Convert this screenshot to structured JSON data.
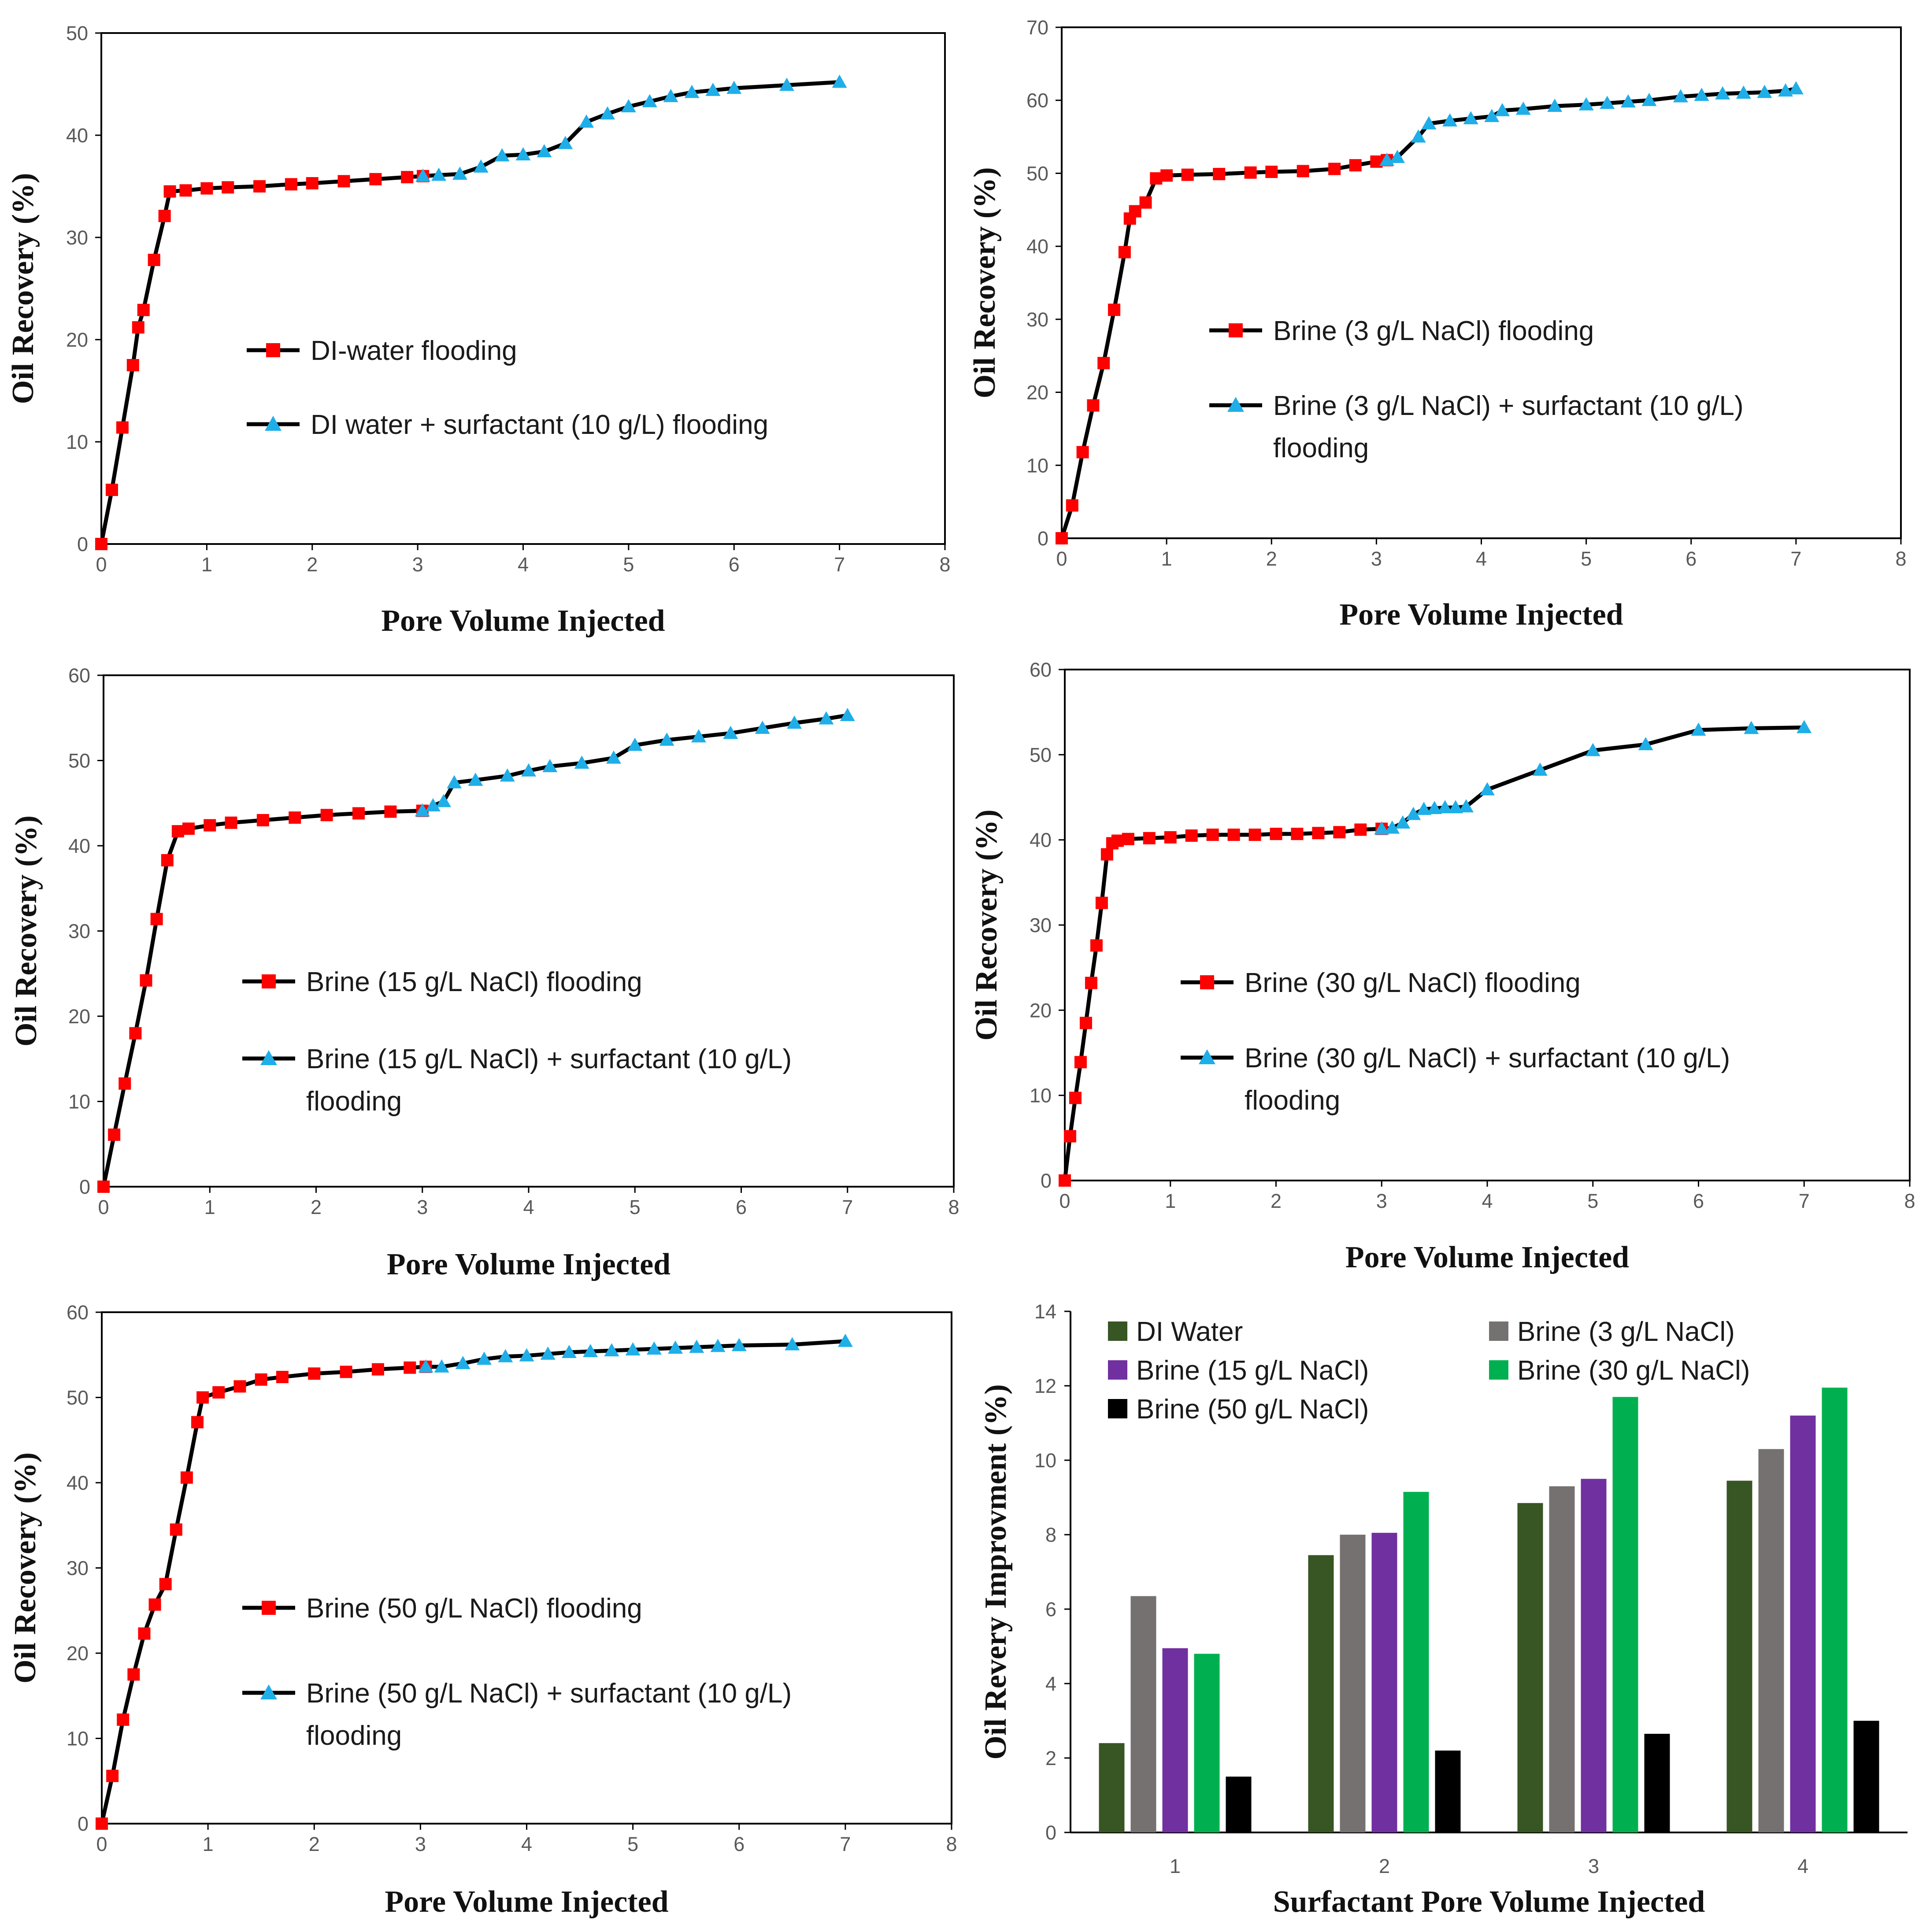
{
  "chart_data": [
    {
      "type": "line",
      "xlabel": "Pore Volume Injected",
      "ylabel": "Oil Recovery (%)",
      "xlim": [
        0,
        8
      ],
      "ylim": [
        0,
        50
      ],
      "xticks": [
        "0",
        "1",
        "2",
        "3",
        "4",
        "5",
        "6",
        "7",
        "8"
      ],
      "yticks": [
        "0",
        "10",
        "20",
        "30",
        "40",
        "50"
      ],
      "legend": "center",
      "series": [
        {
          "name": "DI-water flooding",
          "marker": "square",
          "color": "#ff0000",
          "x": [
            0,
            0.1,
            0.2,
            0.3,
            0.35,
            0.4,
            0.5,
            0.6,
            0.65,
            0.8,
            1,
            1.2,
            1.5,
            1.8,
            2,
            2.3,
            2.6,
            2.9,
            3.05
          ],
          "y": [
            0,
            5.3,
            11.4,
            17.5,
            21.2,
            22.9,
            27.8,
            32.1,
            34.5,
            34.6,
            34.8,
            34.9,
            35,
            35.2,
            35.3,
            35.5,
            35.7,
            35.9,
            36
          ]
        },
        {
          "name": "DI water + surfactant (10 g/L) flooding",
          "marker": "triangle",
          "color": "#1faee8",
          "x": [
            3.05,
            3.2,
            3.4,
            3.6,
            3.8,
            4,
            4.2,
            4.4,
            4.6,
            4.8,
            5,
            5.2,
            5.4,
            5.6,
            5.8,
            6,
            6.5,
            7
          ],
          "y": [
            36,
            36.1,
            36.2,
            36.9,
            38,
            38.1,
            38.4,
            39.2,
            41.3,
            42.1,
            42.8,
            43.3,
            43.8,
            44.2,
            44.4,
            44.6,
            44.9,
            45.2
          ]
        }
      ]
    },
    {
      "type": "line",
      "xlabel": "Pore Volume Injected",
      "ylabel": "Oil Recovery (%)",
      "xlim": [
        0,
        8
      ],
      "ylim": [
        0,
        70
      ],
      "xticks": [
        "0",
        "1",
        "2",
        "3",
        "4",
        "5",
        "6",
        "7",
        "8"
      ],
      "yticks": [
        "0",
        "10",
        "20",
        "30",
        "40",
        "50",
        "60",
        "70"
      ],
      "legend": "center",
      "series": [
        {
          "name": "Brine (3 g/L NaCl) flooding",
          "marker": "square",
          "color": "#ff0000",
          "x": [
            0,
            0.1,
            0.2,
            0.3,
            0.4,
            0.5,
            0.6,
            0.65,
            0.7,
            0.8,
            0.9,
            1,
            1.2,
            1.5,
            1.8,
            2,
            2.3,
            2.6,
            2.8,
            3,
            3.1
          ],
          "y": [
            0,
            4.5,
            11.8,
            18.2,
            24,
            31.3,
            39.2,
            43.8,
            44.8,
            46,
            49.3,
            49.7,
            49.8,
            49.9,
            50.1,
            50.2,
            50.3,
            50.6,
            51.1,
            51.6,
            51.8
          ]
        },
        {
          "name": "Brine (3 g/L NaCl) + surfactant (10 g/L) flooding",
          "marker": "triangle",
          "color": "#1faee8",
          "x": [
            3.1,
            3.2,
            3.4,
            3.5,
            3.7,
            3.9,
            4.1,
            4.2,
            4.4,
            4.7,
            5,
            5.2,
            5.4,
            5.6,
            5.9,
            6.1,
            6.3,
            6.5,
            6.7,
            6.9,
            7
          ],
          "y": [
            51.8,
            52.2,
            55,
            56.8,
            57.2,
            57.5,
            57.8,
            58.6,
            58.8,
            59.2,
            59.4,
            59.6,
            59.8,
            60,
            60.5,
            60.7,
            60.9,
            61,
            61.1,
            61.3,
            61.6
          ]
        }
      ]
    },
    {
      "type": "line",
      "xlabel": "Pore Volume Injected",
      "ylabel": "Oil Recovery (%)",
      "xlim": [
        0,
        8
      ],
      "ylim": [
        0,
        60
      ],
      "xticks": [
        "0",
        "1",
        "2",
        "3",
        "4",
        "5",
        "6",
        "7",
        "8"
      ],
      "yticks": [
        "0",
        "10",
        "20",
        "30",
        "40",
        "50",
        "60"
      ],
      "legend": "center",
      "series": [
        {
          "name": "Brine (15 g/L NaCl) flooding",
          "marker": "square",
          "color": "#ff0000",
          "x": [
            0,
            0.1,
            0.2,
            0.3,
            0.4,
            0.5,
            0.6,
            0.7,
            0.8,
            1,
            1.2,
            1.5,
            1.8,
            2.1,
            2.4,
            2.7,
            3
          ],
          "y": [
            0,
            6.1,
            12.1,
            18,
            24.2,
            31.4,
            38.3,
            41.7,
            42,
            42.4,
            42.7,
            43,
            43.3,
            43.6,
            43.8,
            44,
            44.1
          ]
        },
        {
          "name": "Brine (15 g/L NaCl) + surfactant (10 g/L) flooding",
          "marker": "triangle",
          "color": "#1faee8",
          "x": [
            3,
            3.1,
            3.2,
            3.3,
            3.5,
            3.8,
            4,
            4.2,
            4.5,
            4.8,
            5,
            5.3,
            5.6,
            5.9,
            6.2,
            6.5,
            6.8,
            7
          ],
          "y": [
            44.1,
            44.7,
            45.2,
            47.4,
            47.7,
            48.2,
            48.8,
            49.3,
            49.7,
            50.3,
            51.8,
            52.4,
            52.8,
            53.2,
            53.8,
            54.4,
            54.9,
            55.3
          ]
        }
      ]
    },
    {
      "type": "line",
      "xlabel": "Pore Volume Injected",
      "ylabel": "Oil Recovery (%)",
      "xlim": [
        0,
        8
      ],
      "ylim": [
        0,
        60
      ],
      "xticks": [
        "0",
        "1",
        "2",
        "3",
        "4",
        "5",
        "6",
        "7",
        "8"
      ],
      "yticks": [
        "0",
        "10",
        "20",
        "30",
        "40",
        "50",
        "60"
      ],
      "legend": "center",
      "series": [
        {
          "name": "Brine (30 g/L NaCl) flooding",
          "marker": "square",
          "color": "#ff0000",
          "x": [
            0,
            0.05,
            0.1,
            0.15,
            0.2,
            0.25,
            0.3,
            0.35,
            0.4,
            0.45,
            0.5,
            0.6,
            0.8,
            1,
            1.2,
            1.4,
            1.6,
            1.8,
            2,
            2.2,
            2.4,
            2.6,
            2.8,
            3
          ],
          "y": [
            0,
            5.2,
            9.7,
            13.9,
            18.5,
            23.2,
            27.6,
            32.6,
            38.3,
            39.6,
            39.9,
            40.1,
            40.2,
            40.3,
            40.5,
            40.6,
            40.6,
            40.6,
            40.7,
            40.7,
            40.8,
            40.9,
            41.2,
            41.3
          ]
        },
        {
          "name": "Brine (30 g/L NaCl) + surfactant (10 g/L) flooding",
          "marker": "triangle",
          "color": "#1faee8",
          "x": [
            3,
            3.1,
            3.2,
            3.3,
            3.4,
            3.5,
            3.6,
            3.7,
            3.8,
            4,
            4.5,
            5,
            5.5,
            6,
            6.5,
            7
          ],
          "y": [
            41.3,
            41.4,
            42,
            43,
            43.6,
            43.7,
            43.8,
            43.8,
            43.9,
            45.9,
            48.2,
            50.5,
            51.2,
            52.9,
            53.1,
            53.2
          ]
        }
      ]
    },
    {
      "type": "line",
      "xlabel": "Pore Volume Injected",
      "ylabel": "Oil Recovery (%)",
      "xlim": [
        0,
        8
      ],
      "ylim": [
        0,
        60
      ],
      "xticks": [
        "0",
        "1",
        "2",
        "3",
        "4",
        "5",
        "6",
        "7",
        "8"
      ],
      "yticks": [
        "0",
        "10",
        "20",
        "30",
        "40",
        "50",
        "60"
      ],
      "legend": "center",
      "series": [
        {
          "name": "Brine (50 g/L NaCl) flooding",
          "marker": "square",
          "color": "#ff0000",
          "x": [
            0,
            0.1,
            0.2,
            0.3,
            0.4,
            0.5,
            0.6,
            0.7,
            0.8,
            0.9,
            0.95,
            1.1,
            1.3,
            1.5,
            1.7,
            2,
            2.3,
            2.6,
            2.9,
            3.05
          ],
          "y": [
            0,
            5.6,
            12.2,
            17.5,
            22.3,
            25.7,
            28.1,
            34.5,
            40.6,
            47.1,
            50,
            50.6,
            51.3,
            52.1,
            52.4,
            52.8,
            53,
            53.3,
            53.5,
            53.6
          ]
        },
        {
          "name": "Brine (50 g/L NaCl) + surfactant (10 g/L) flooding",
          "marker": "triangle",
          "color": "#1faee8",
          "x": [
            3.05,
            3.2,
            3.4,
            3.6,
            3.8,
            4,
            4.2,
            4.4,
            4.6,
            4.8,
            5,
            5.2,
            5.4,
            5.6,
            5.8,
            6,
            6.5,
            7
          ],
          "y": [
            53.6,
            53.6,
            54,
            54.5,
            54.8,
            54.9,
            55.1,
            55.3,
            55.4,
            55.5,
            55.6,
            55.7,
            55.8,
            55.9,
            56,
            56.1,
            56.2,
            56.6
          ]
        }
      ]
    },
    {
      "type": "bar",
      "xlabel": "Surfactant Pore Volume Injected",
      "ylabel": "Oil Revery Improvment (%)",
      "ylim": [
        0,
        14
      ],
      "yticks": [
        "0",
        "2",
        "4",
        "6",
        "8",
        "10",
        "12",
        "14"
      ],
      "categories": [
        "1",
        "2",
        "3",
        "4"
      ],
      "legend": "top",
      "series": [
        {
          "name": "DI Water",
          "color": "#375623",
          "values": [
            2.4,
            7.45,
            8.85,
            9.45
          ]
        },
        {
          "name": "Brine (3 g/L NaCl)",
          "color": "#767171",
          "values": [
            6.35,
            8,
            9.3,
            10.3
          ]
        },
        {
          "name": "Brine (15 g/L NaCl)",
          "color": "#7030a0",
          "values": [
            4.95,
            8.05,
            9.5,
            11.2
          ]
        },
        {
          "name": "Brine (30 g/L NaCl)",
          "color": "#00b050",
          "values": [
            4.8,
            9.15,
            11.7,
            11.95
          ]
        },
        {
          "name": "Brine (50 g/L NaCl)",
          "color": "#000000",
          "values": [
            1.5,
            2.2,
            2.65,
            3
          ]
        }
      ]
    }
  ]
}
